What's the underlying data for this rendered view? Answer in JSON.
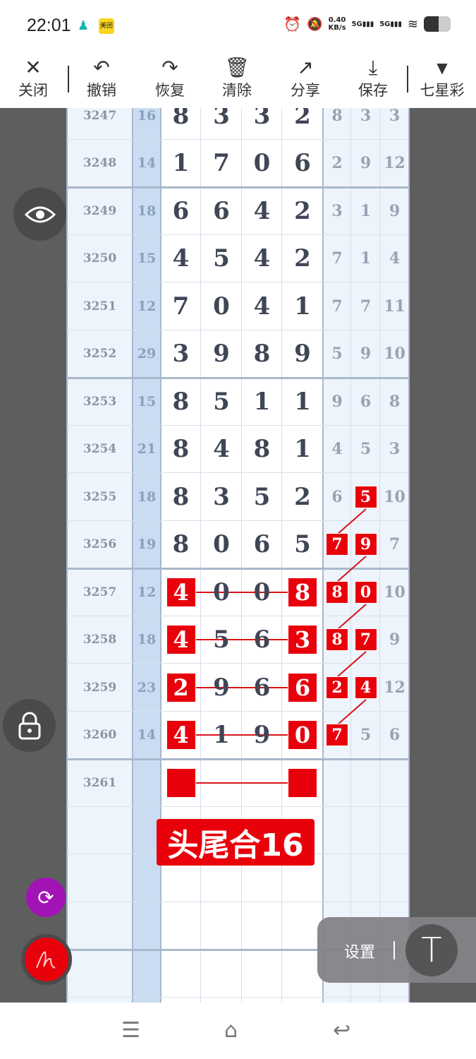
{
  "status": {
    "time": "22:01",
    "app_badge": "美团",
    "speed": "0.40",
    "speed_unit": "KB/s",
    "net1": "5G",
    "net2": "5G"
  },
  "toolbar": {
    "items": [
      {
        "label": "关闭",
        "icon": "close-icon"
      },
      {
        "label": "撤销",
        "icon": "undo-icon"
      },
      {
        "label": "恢复",
        "icon": "redo-icon"
      },
      {
        "label": "清除",
        "icon": "clear-icon"
      },
      {
        "label": "分享",
        "icon": "share-icon"
      },
      {
        "label": "保存",
        "icon": "save-icon"
      },
      {
        "label": "七星彩",
        "icon": "dropdown-icon"
      }
    ]
  },
  "rows": [
    {
      "issue": "3247",
      "sum": "16",
      "digits": [
        "8",
        "3",
        "3",
        "2"
      ],
      "extra": [
        "8",
        "3",
        "3"
      ]
    },
    {
      "issue": "3248",
      "sum": "14",
      "digits": [
        "1",
        "7",
        "0",
        "6"
      ],
      "extra": [
        "2",
        "9",
        "12"
      ]
    },
    {
      "issue": "3249",
      "sum": "18",
      "digits": [
        "6",
        "6",
        "4",
        "2"
      ],
      "extra": [
        "3",
        "1",
        "9"
      ]
    },
    {
      "issue": "3250",
      "sum": "15",
      "digits": [
        "4",
        "5",
        "4",
        "2"
      ],
      "extra": [
        "7",
        "1",
        "4"
      ]
    },
    {
      "issue": "3251",
      "sum": "12",
      "digits": [
        "7",
        "0",
        "4",
        "1"
      ],
      "extra": [
        "7",
        "7",
        "11"
      ]
    },
    {
      "issue": "3252",
      "sum": "29",
      "digits": [
        "3",
        "9",
        "8",
        "9"
      ],
      "extra": [
        "5",
        "9",
        "10"
      ]
    },
    {
      "issue": "3253",
      "sum": "15",
      "digits": [
        "8",
        "5",
        "1",
        "1"
      ],
      "extra": [
        "9",
        "6",
        "8"
      ]
    },
    {
      "issue": "3254",
      "sum": "21",
      "digits": [
        "8",
        "4",
        "8",
        "1"
      ],
      "extra": [
        "4",
        "5",
        "3"
      ]
    },
    {
      "issue": "3255",
      "sum": "18",
      "digits": [
        "8",
        "3",
        "5",
        "2"
      ],
      "extra": [
        "6",
        "5",
        "10"
      ],
      "extra_hl": [
        false,
        true,
        false
      ]
    },
    {
      "issue": "3256",
      "sum": "19",
      "digits": [
        "8",
        "0",
        "6",
        "5"
      ],
      "extra": [
        "7",
        "9",
        "7"
      ],
      "extra_hl": [
        true,
        true,
        false
      ]
    },
    {
      "issue": "3257",
      "sum": "12",
      "digits": [
        "4",
        "0",
        "0",
        "8"
      ],
      "extra": [
        "8",
        "0",
        "10"
      ],
      "head_tail_hl": true,
      "extra_hl": [
        true,
        true,
        false
      ]
    },
    {
      "issue": "3258",
      "sum": "18",
      "digits": [
        "4",
        "5",
        "6",
        "3"
      ],
      "extra": [
        "8",
        "7",
        "9"
      ],
      "head_tail_hl": true,
      "extra_hl": [
        true,
        true,
        false
      ]
    },
    {
      "issue": "3259",
      "sum": "23",
      "digits": [
        "2",
        "9",
        "6",
        "6"
      ],
      "extra": [
        "2",
        "4",
        "12"
      ],
      "head_tail_hl": true,
      "extra_hl": [
        true,
        true,
        false
      ]
    },
    {
      "issue": "3260",
      "sum": "14",
      "digits": [
        "4",
        "1",
        "9",
        "0"
      ],
      "extra": [
        "7",
        "5",
        "6"
      ],
      "head_tail_hl": true,
      "extra_hl": [
        true,
        false,
        false
      ]
    },
    {
      "issue": "3261",
      "sum": "",
      "digits": [
        "",
        "",
        "",
        ""
      ],
      "extra": [
        "",
        "",
        ""
      ],
      "head_tail_hl": true
    }
  ],
  "annotation": "头尾合16",
  "settings": {
    "label": "设置",
    "text_tool": "T"
  },
  "colors": {
    "highlight": "#e8000b",
    "sum_column": "#c9dcf2",
    "panel": "#eef4fb"
  }
}
